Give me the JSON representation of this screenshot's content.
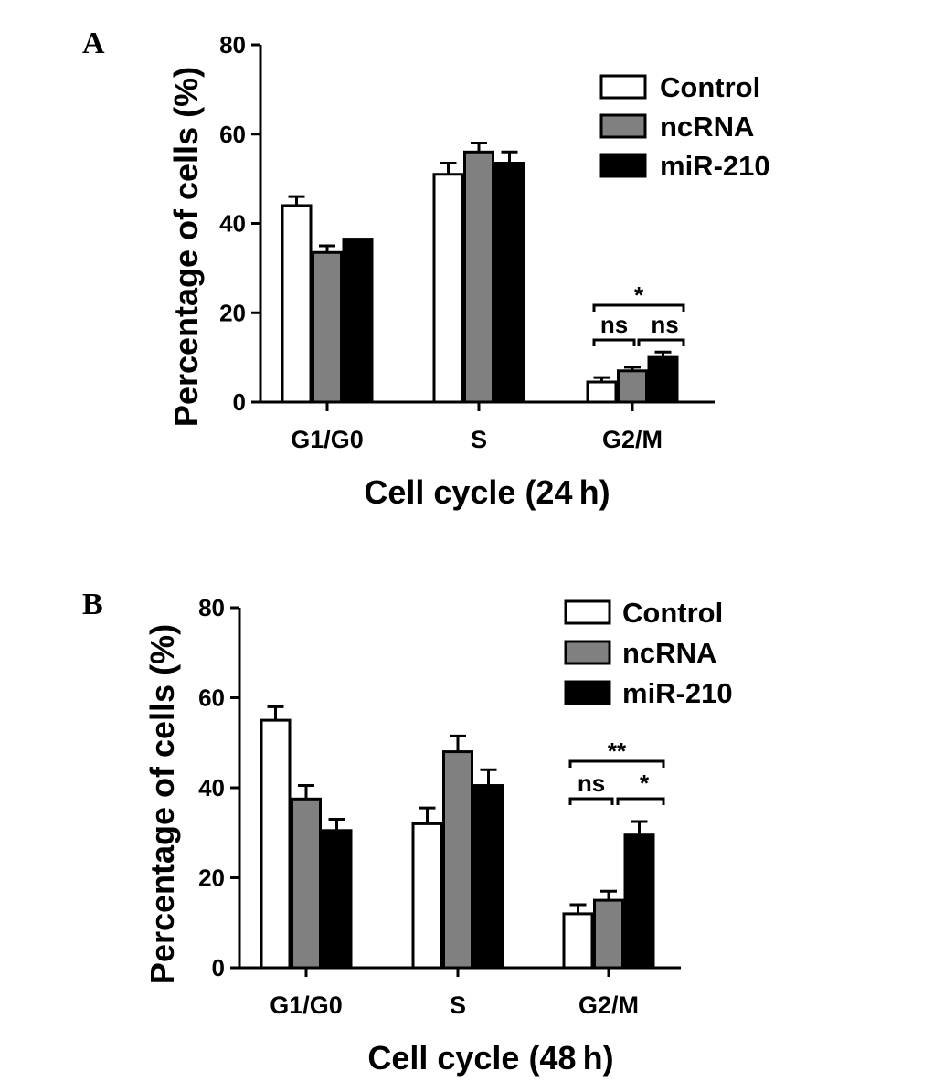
{
  "series_colors": {
    "Control": "#ffffff",
    "ncRNA": "#808080",
    "miR-210": "#000000"
  },
  "chart_data": [
    {
      "panel": "A",
      "type": "bar",
      "categories": [
        "G1/G0",
        "S",
        "G2/M"
      ],
      "series": [
        {
          "name": "Control",
          "values": [
            44,
            51,
            4.5
          ],
          "errors": [
            2,
            2.5,
            1
          ]
        },
        {
          "name": "ncRNA",
          "values": [
            33.5,
            56,
            7
          ],
          "errors": [
            1.5,
            2,
            0.8
          ]
        },
        {
          "name": "miR-210",
          "values": [
            36.5,
            53.5,
            10
          ],
          "errors": [
            0,
            2.5,
            1.2
          ]
        }
      ],
      "xlabel": "Cell cycle (24 h)",
      "ylabel": "Percentage of cells (%)",
      "ylim": [
        0,
        80
      ],
      "yticks": [
        "0",
        "20",
        "40",
        "60",
        "80"
      ],
      "legend": {
        "position": "top-right",
        "entries": [
          "Control",
          "ncRNA",
          "miR-210"
        ]
      },
      "significance": {
        "top": "*",
        "left": "ns",
        "right": "ns"
      }
    },
    {
      "panel": "B",
      "type": "bar",
      "categories": [
        "G1/G0",
        "S",
        "G2/M"
      ],
      "series": [
        {
          "name": "Control",
          "values": [
            55,
            32,
            12
          ],
          "errors": [
            3,
            3.5,
            2
          ]
        },
        {
          "name": "ncRNA",
          "values": [
            37.5,
            48,
            15
          ],
          "errors": [
            3,
            3.5,
            2
          ]
        },
        {
          "name": "miR-210",
          "values": [
            30.5,
            40.5,
            29.5
          ],
          "errors": [
            2.5,
            3.5,
            3
          ]
        }
      ],
      "xlabel": "Cell cycle (48 h)",
      "ylabel": "Percentage of cells (%)",
      "ylim": [
        0,
        80
      ],
      "yticks": [
        "0",
        "20",
        "40",
        "60",
        "80"
      ],
      "legend": {
        "position": "top-right",
        "entries": [
          "Control",
          "ncRNA",
          "miR-210"
        ]
      },
      "significance": {
        "top": "**",
        "left": "ns",
        "right": "*"
      }
    }
  ]
}
